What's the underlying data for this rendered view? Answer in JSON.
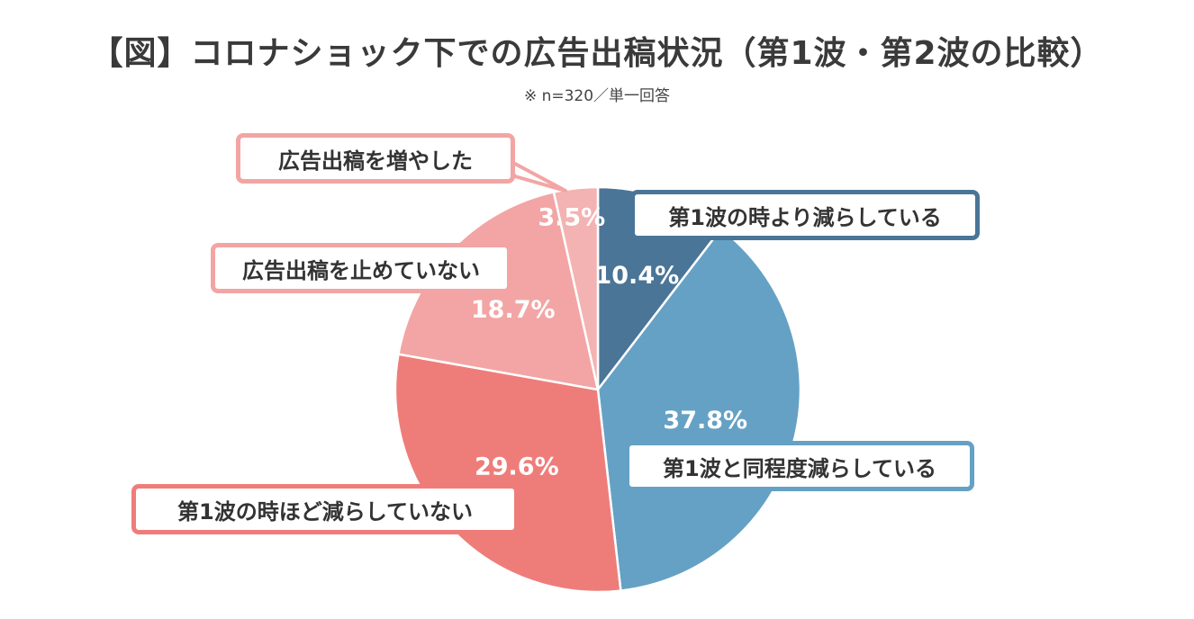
{
  "title": "【図】コロナショック下での広告出稿状況（第1波・第2波の比較）",
  "subtitle": "※ n=320／単一回答",
  "chart_data": {
    "type": "pie",
    "title": "【図】コロナショック下での広告出稿状況（第1波・第2波の比較）",
    "subtitle": "※ n=320／単一回答",
    "start_angle_deg": 0,
    "direction": "clockwise",
    "slices": [
      {
        "label": "第1波の時より減らしている",
        "value": 10.4,
        "value_label": "10.4%",
        "color": "#4a7597"
      },
      {
        "label": "第1波と同程度減らしている",
        "value": 37.8,
        "value_label": "37.8%",
        "color": "#65a1c4"
      },
      {
        "label": "第1波の時ほど減らしていない",
        "value": 29.6,
        "value_label": "29.6%",
        "color": "#ee7d7a"
      },
      {
        "label": "広告出稿を止めていない",
        "value": 18.7,
        "value_label": "18.7%",
        "color": "#f2a5a4"
      },
      {
        "label": "広告出稿を増やした",
        "value": 3.5,
        "value_label": "3.5%",
        "color": "#f3b3b2"
      }
    ]
  }
}
